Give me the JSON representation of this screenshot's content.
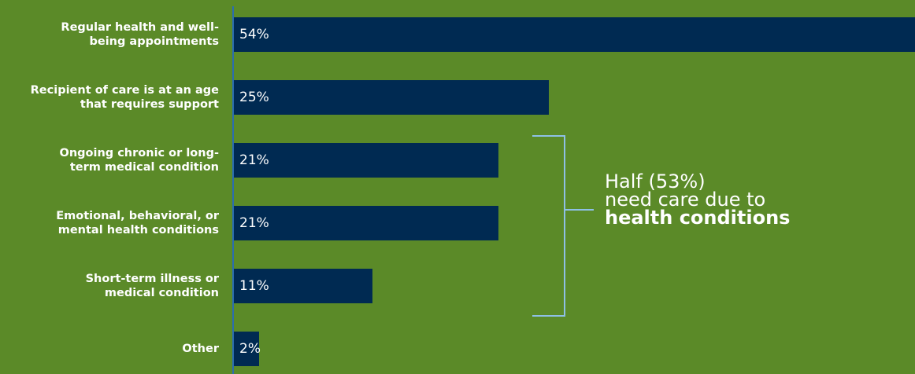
{
  "chart_data": {
    "type": "bar",
    "orientation": "horizontal",
    "categories": [
      [
        "Regular health and well-",
        "being appointments"
      ],
      [
        "Recipient of care is at an age",
        "that requires support"
      ],
      [
        "Ongoing chronic or long-",
        "term medical condition"
      ],
      [
        "Emotional, behavioral, or",
        "mental health conditions"
      ],
      [
        "Short-term illness or",
        "medical condition"
      ],
      [
        "Other"
      ]
    ],
    "values": [
      54,
      25,
      21,
      21,
      11,
      2
    ],
    "value_labels": [
      "54%",
      "25%",
      "21%",
      "21%",
      "11%",
      "2%"
    ],
    "xlim": [
      0,
      54
    ],
    "grid": false,
    "colors": {
      "background": "#5b8a28",
      "bar": "#002a52",
      "axis": "#2a6db0",
      "bracket": "#8ec0e6"
    },
    "annotation": {
      "lines": [
        "Half (53%)",
        "need care due to"
      ],
      "bold_line": "health conditions"
    }
  }
}
